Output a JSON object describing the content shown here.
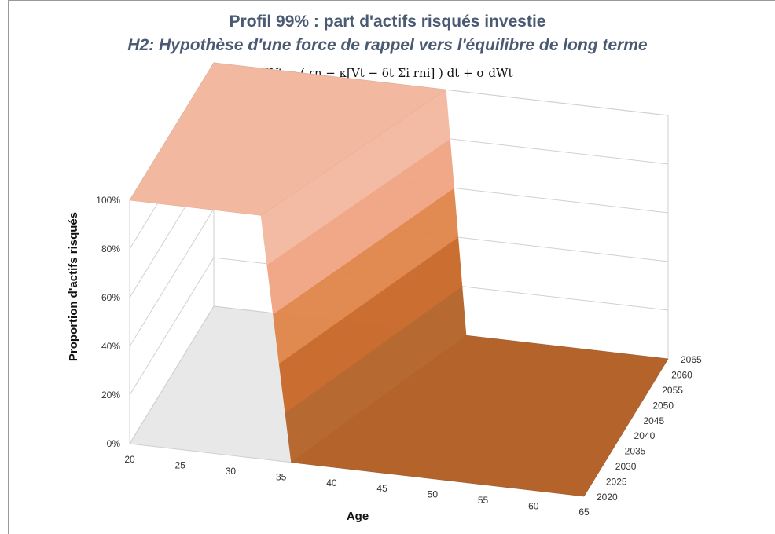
{
  "chart_data": {
    "type": "surface",
    "title": "Profil 99% : part d'actifs risqués investie",
    "subtitle": "H2: Hypothèse d'une force de rappel vers l'équilibre de long terme",
    "formula": "dVt = ( rn − κ[Vt − δt Σi rni] ) dt + σ dWt",
    "xlabel": "Age",
    "ylabel": "Proportion d'actifs risqués",
    "x_ticks": [
      "20",
      "25",
      "30",
      "35",
      "40",
      "45",
      "50",
      "55",
      "60",
      "65"
    ],
    "z_ticks": [
      "0%",
      "20%",
      "40%",
      "60%",
      "80%",
      "100%"
    ],
    "depth_ticks": [
      "2020",
      "2025",
      "2030",
      "2035",
      "2040",
      "2045",
      "2050",
      "2055",
      "2060",
      "2065"
    ],
    "x_range": [
      20,
      65
    ],
    "depth_range": [
      2020,
      2065
    ],
    "zlim": [
      0,
      1
    ],
    "description_values": {
      "age_start_drop_front": 33,
      "age_end_drop_front": 36,
      "age_start_drop_back": 43,
      "age_end_drop_back": 45,
      "plateau": 1.0,
      "floor": 0.0
    },
    "colors": {
      "top_face": "#f3b9a0",
      "high": "#f0a585",
      "mid": "#e0864a",
      "low": "#c9692a",
      "floor": "#b4642a",
      "floor_dark": "#9e5423",
      "back_wall": "#e8e8e8"
    }
  }
}
